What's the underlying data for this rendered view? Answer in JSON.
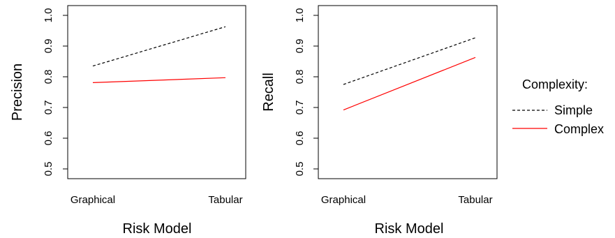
{
  "chart_data": [
    {
      "type": "line",
      "categories": [
        "Graphical",
        "Tabular"
      ],
      "xlabel": "Risk Model",
      "ylabel": "Precision",
      "ylim": [
        0.5,
        1.0
      ],
      "yticks": [
        "0.5",
        "0.6",
        "0.7",
        "0.8",
        "0.9",
        "1.0"
      ],
      "series": [
        {
          "name": "Simple",
          "values": [
            0.835,
            0.963
          ],
          "color": "#000000",
          "dash": "dashed"
        },
        {
          "name": "Complex",
          "values": [
            0.781,
            0.797
          ],
          "color": "#ff0000",
          "dash": "solid"
        }
      ]
    },
    {
      "type": "line",
      "categories": [
        "Graphical",
        "Tabular"
      ],
      "xlabel": "Risk Model",
      "ylabel": "Recall",
      "ylim": [
        0.5,
        1.0
      ],
      "yticks": [
        "0.5",
        "0.6",
        "0.7",
        "0.8",
        "0.9",
        "1.0"
      ],
      "series": [
        {
          "name": "Simple",
          "values": [
            0.775,
            0.927
          ],
          "color": "#000000",
          "dash": "dashed"
        },
        {
          "name": "Complex",
          "values": [
            0.692,
            0.863
          ],
          "color": "#ff0000",
          "dash": "solid"
        }
      ]
    }
  ],
  "legend": {
    "title": "Complexity:",
    "items": [
      {
        "label": "Simple",
        "color": "#000000",
        "dash": "dashed"
      },
      {
        "label": "Complex",
        "color": "#ff0000",
        "dash": "solid"
      }
    ]
  }
}
